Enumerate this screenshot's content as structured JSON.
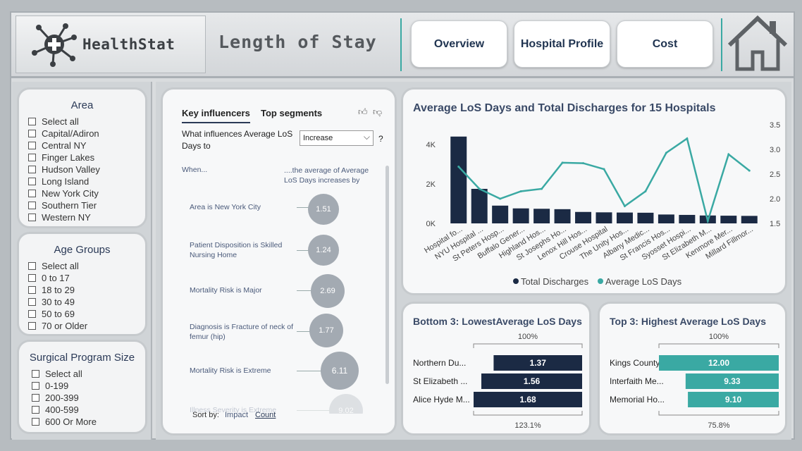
{
  "header": {
    "brand": "HealthStat",
    "page_title": "Length of Stay",
    "nav": [
      "Overview",
      "Hospital Profile",
      "Cost"
    ],
    "home_icon": "home-icon",
    "logo_icon": "health-network-icon"
  },
  "filters": {
    "area": {
      "title": "Area",
      "items": [
        "Select all",
        "Capital/Adiron",
        "Central NY",
        "Finger Lakes",
        "Hudson Valley",
        "Long Island",
        "New York City",
        "Southern Tier",
        "Western NY"
      ]
    },
    "age_groups": {
      "title": "Age Groups",
      "items": [
        "Select all",
        "0 to 17",
        "18 to 29",
        "30 to 49",
        "50 to 69",
        "70 or Older"
      ]
    },
    "surgical": {
      "title": "Surgical Program Size",
      "items": [
        "Select all",
        "0-199",
        "200-399",
        "400-599",
        "600 Or More"
      ]
    }
  },
  "key_influencers": {
    "tabs": [
      "Key influencers",
      "Top segments"
    ],
    "question": "What influences Average LoS Days to",
    "dropdown_value": "Increase",
    "help": "?",
    "col_when": "When...",
    "col_avg": "....the average of Average LoS Days increases by",
    "rows": [
      {
        "text": "Area is New York City",
        "value": "1.51"
      },
      {
        "text": "Patient Disposition is Skilled Nursing Home",
        "value": "1.24"
      },
      {
        "text": "Mortality Risk is Major",
        "value": "2.69"
      },
      {
        "text": "Diagnosis is Fracture of neck of femur (hip)",
        "value": "1.77"
      },
      {
        "text": "Mortality Risk is Extreme",
        "value": "6.11"
      },
      {
        "text": "Illness Severity is Extreme",
        "value": "9.02"
      }
    ],
    "sort_by": "Sort by:",
    "sort_options": [
      "Impact",
      "Count"
    ]
  },
  "colors": {
    "navy": "#1b2a44",
    "teal": "#3aa9a3"
  },
  "main_chart_title": "Average LoS Days and Total Discharges for 15 Hospitals",
  "chart_data": [
    {
      "type": "bar+line",
      "title": "Average LoS Days and Total Discharges for 15 Hospitals",
      "categories": [
        "Hospital fo...",
        "NYU Hospital ...",
        "St Peters Hosp...",
        "Buffalo Gener...",
        "Highland Hos...",
        "St Josephs Ho...",
        "Lenox Hill Hos...",
        "Crouse Hospital",
        "The Unity Hos...",
        "Albany Medic...",
        "St Francis Hos...",
        "Syosset Hospi...",
        "St Elizabeth M...",
        "Kenmore Mer...",
        "Millard Fillmor..."
      ],
      "series": [
        {
          "name": "Total Discharges",
          "axis": "left",
          "values": [
            4400,
            1750,
            900,
            760,
            740,
            720,
            580,
            560,
            550,
            540,
            450,
            430,
            400,
            390,
            380
          ]
        },
        {
          "name": "Average LoS Days",
          "axis": "right",
          "values": [
            2.65,
            2.2,
            2.0,
            2.15,
            2.2,
            2.73,
            2.72,
            2.6,
            1.85,
            2.15,
            2.93,
            3.22,
            1.55,
            2.9,
            2.57
          ]
        }
      ],
      "y_left_ticks": [
        "0K",
        "2K",
        "4K"
      ],
      "y_left_range": [
        0,
        5000
      ],
      "y_right_ticks": [
        "1.5",
        "2.0",
        "2.5",
        "3.0",
        "3.5"
      ],
      "y_right_range": [
        1.5,
        3.5
      ],
      "legend": [
        "Total Discharges",
        "Average LoS Days"
      ]
    },
    {
      "type": "bar",
      "title": "Bottom 3: LowestAverage LoS Days",
      "top_label": "100%",
      "bottom_label": "123.1%",
      "categories": [
        "Northern Du...",
        "St Elizabeth ...",
        "Alice Hyde M..."
      ],
      "values": [
        1.37,
        1.56,
        1.68
      ],
      "labels": [
        "1.37",
        "1.56",
        "1.68"
      ]
    },
    {
      "type": "bar",
      "title": "Top 3: Highest Average LoS Days",
      "top_label": "100%",
      "bottom_label": "75.8%",
      "categories": [
        "Kings County...",
        "Interfaith Me...",
        "Memorial Ho..."
      ],
      "values": [
        12.0,
        9.33,
        9.1
      ],
      "labels": [
        "12.00",
        "9.33",
        "9.10"
      ]
    }
  ]
}
